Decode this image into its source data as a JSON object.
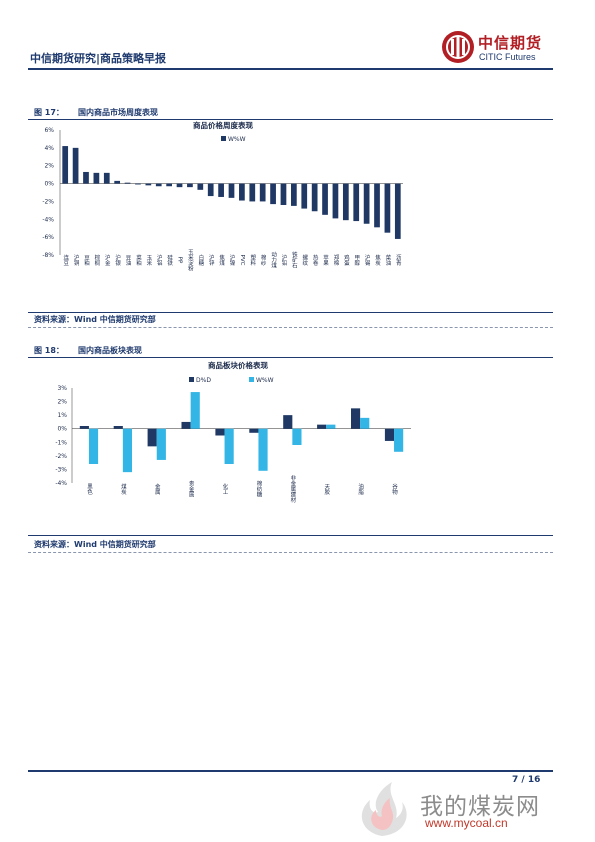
{
  "header": {
    "title": "中信期货研究|商品策略早报",
    "logo_cn": "中信期货",
    "logo_en": "CITIC Futures"
  },
  "figure17": {
    "label": "图 17：",
    "title": "国内商品市场周度表现",
    "source": "资料来源：Wind 中信期货研究部"
  },
  "figure18": {
    "label": "图 18：",
    "title": "国内商品板块表现",
    "source": "资料来源：Wind 中信期货研究部"
  },
  "chart_data": [
    {
      "type": "bar",
      "title": "商品价格周度表现",
      "legend": [
        "W%W"
      ],
      "legend_position": "top-center",
      "colors": {
        "W%W": "#1f3864"
      },
      "ylim": [
        -8,
        6
      ],
      "yticks": [
        "6%",
        "4%",
        "2%",
        "0%",
        "-2%",
        "-4%",
        "-6%",
        "-8%"
      ],
      "categories": [
        "连豆",
        "沪铜",
        "豆粕",
        "棕榈",
        "沪金",
        "沪银",
        "豆油",
        "菜粕",
        "玉米",
        "沪铝",
        "硅铁",
        "PP",
        "玉米淀粉",
        "白糖",
        "沪锌",
        "焦煤",
        "沪镍",
        "PVC",
        "塑料",
        "棉纱",
        "动力煤",
        "沪铅",
        "铁矿石",
        "螺纹",
        "热卷",
        "苹果",
        "郑棉",
        "鸡蛋",
        "甲醇",
        "沪锡",
        "焦炭",
        "菜油",
        "沥青"
      ],
      "series": [
        {
          "name": "W%W",
          "values": [
            4.2,
            4.0,
            1.3,
            1.2,
            1.2,
            0.3,
            0.1,
            -0.1,
            -0.2,
            -0.3,
            -0.3,
            -0.4,
            -0.4,
            -0.7,
            -1.4,
            -1.5,
            -1.6,
            -1.9,
            -2.0,
            -2.0,
            -2.3,
            -2.4,
            -2.5,
            -2.8,
            -3.1,
            -3.5,
            -3.9,
            -4.1,
            -4.2,
            -4.5,
            -4.9,
            -5.5,
            -6.2
          ]
        }
      ]
    },
    {
      "type": "bar",
      "title": "商品板块价格表现",
      "legend": [
        "D%D",
        "W%W"
      ],
      "legend_position": "top-center",
      "colors": {
        "D%D": "#1f3864",
        "W%W": "#33b5e5"
      },
      "ylim": [
        -4,
        3
      ],
      "yticks": [
        "3%",
        "2%",
        "1%",
        "0%",
        "-1%",
        "-2%",
        "-3%",
        "-4%"
      ],
      "categories": [
        "黑色",
        "煤炭",
        "金属",
        "贵金属",
        "化工",
        "棉纺糖",
        "非金属建材",
        "天胶",
        "油脂",
        "谷物"
      ],
      "category_labels": [
        "黑色",
        "煤炭",
        "金属",
        "贵金属",
        "化工",
        "棉纺糖",
        "非金属建材",
        "天胶",
        "油脂",
        "谷物"
      ],
      "series": [
        {
          "name": "D%D",
          "values": [
            0.2,
            0.2,
            -1.3,
            0.5,
            -0.5,
            -0.3,
            1.0,
            0.3,
            1.5,
            -0.9
          ]
        },
        {
          "name": "W%W",
          "values": [
            -2.6,
            -3.2,
            -2.3,
            2.7,
            -2.6,
            -3.1,
            -1.2,
            0.3,
            0.8,
            -1.7
          ]
        }
      ]
    }
  ],
  "footer": {
    "page": "7 / 16",
    "watermark_cn": "我的煤炭网",
    "watermark_url": "www.mycoal.cn"
  }
}
